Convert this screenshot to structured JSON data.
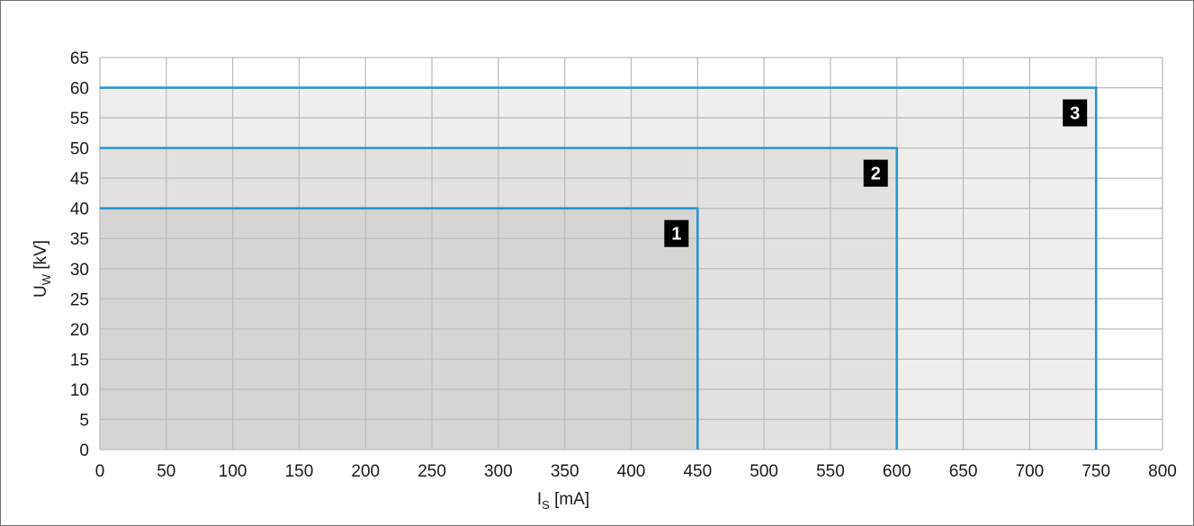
{
  "chart_data": {
    "type": "area",
    "title": "",
    "xlabel": {
      "main": "I",
      "sub": "S",
      "unit": " [mA]"
    },
    "ylabel": {
      "main": "U",
      "sub": "W",
      "unit": " [kV]"
    },
    "xlim": [
      0,
      800
    ],
    "ylim": [
      0,
      65
    ],
    "xticks": [
      0,
      50,
      100,
      150,
      200,
      250,
      300,
      350,
      400,
      450,
      500,
      550,
      600,
      650,
      700,
      750,
      800
    ],
    "yticks": [
      0,
      5,
      10,
      15,
      20,
      25,
      30,
      35,
      40,
      45,
      50,
      55,
      60,
      65
    ],
    "grid": true,
    "legend": "none",
    "series": [
      {
        "name": "1",
        "x_max": 450,
        "y_max": 40
      },
      {
        "name": "2",
        "x_max": 600,
        "y_max": 50
      },
      {
        "name": "3",
        "x_max": 750,
        "y_max": 60
      }
    ],
    "colors": {
      "line": "#2f95c9",
      "fills": [
        "#d6d5d3",
        "#e2e1df",
        "#efeeec"
      ],
      "grid": "#bdbdbd",
      "marker_bg": "#000000"
    }
  }
}
